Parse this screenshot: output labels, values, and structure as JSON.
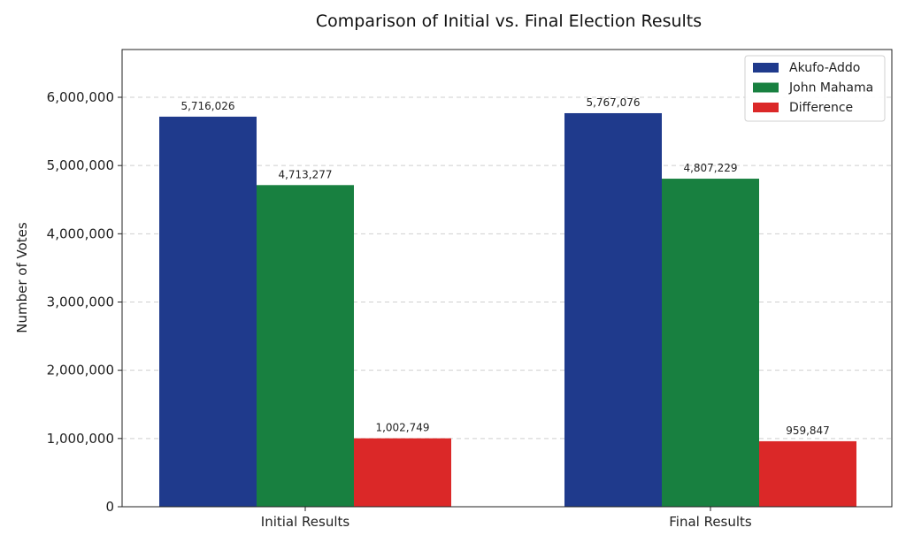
{
  "chart_data": {
    "type": "bar",
    "title": "Comparison of Initial vs. Final Election Results",
    "xlabel": "",
    "ylabel": "Number of Votes",
    "categories": [
      "Initial Results",
      "Final Results"
    ],
    "series": [
      {
        "name": "Akufo-Addo",
        "values": [
          5716026,
          5767076
        ],
        "labels": [
          "5,716,026",
          "5,767,076"
        ]
      },
      {
        "name": "John Mahama",
        "values": [
          4713277,
          4807229
        ],
        "labels": [
          "4,713,277",
          "4,807,229"
        ]
      },
      {
        "name": "Difference",
        "values": [
          1002749,
          959847
        ],
        "labels": [
          "1,002,749",
          "959,847"
        ]
      }
    ],
    "yticks": [
      0,
      1000000,
      2000000,
      3000000,
      4000000,
      5000000,
      6000000
    ],
    "ytick_labels": [
      "0",
      "1,000,000",
      "2,000,000",
      "3,000,000",
      "4,000,000",
      "5,000,000",
      "6,000,000"
    ],
    "ylim": [
      0,
      6000000
    ],
    "grid": "horizontal dashed",
    "legend_position": "top-right",
    "colors": {
      "Akufo-Addo": "#1f3a8c",
      "John Mahama": "#188040",
      "Difference": "#db2828"
    }
  }
}
